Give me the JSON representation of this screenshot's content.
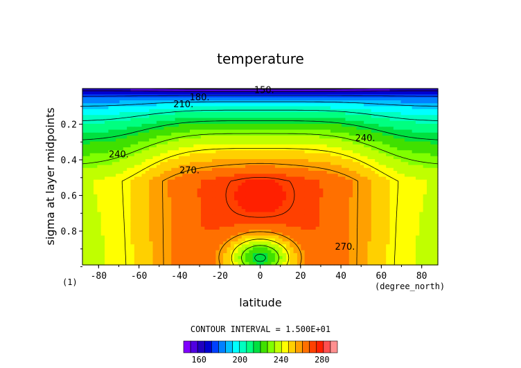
{
  "chart_data": {
    "type": "heatmap",
    "title": "temperature",
    "xlabel": "latitude",
    "ylabel": "sigma at layer midpoints",
    "x_units": "(degree_north)",
    "frame_label": "(1)",
    "xlim": [
      -88,
      88
    ],
    "ylim": [
      0.0,
      0.99
    ],
    "y_inverted": true,
    "xticks": [
      "-80",
      "-60",
      "-40",
      "-20",
      "0",
      "20",
      "40",
      "60",
      "80"
    ],
    "yticks": [
      "0.2",
      "0.4",
      "0.6",
      "0.8"
    ],
    "contour_interval_text": "CONTOUR INTERVAL = 1.500E+01",
    "colorbar": {
      "min": 145,
      "max": 295,
      "step": 7.5,
      "tick_values": [
        160,
        200,
        240,
        280
      ],
      "tick_labels": [
        "160",
        "200",
        "240",
        "280"
      ],
      "colors": [
        "#8000ff",
        "#5000e0",
        "#2000c0",
        "#0000d0",
        "#0040ff",
        "#0080ff",
        "#00c0ff",
        "#00ffff",
        "#00ffc0",
        "#00ff80",
        "#00e040",
        "#40e000",
        "#80ff00",
        "#c0ff00",
        "#ffff00",
        "#ffd000",
        "#ffa000",
        "#ff7000",
        "#ff4000",
        "#ff2000",
        "#ff5050",
        "#ff9090"
      ]
    },
    "contour_labels": [
      {
        "text": "150.",
        "x": 2,
        "y": 0.01
      },
      {
        "text": "180.",
        "x": -30,
        "y": 0.05
      },
      {
        "text": "210.",
        "x": -38,
        "y": 0.09
      },
      {
        "text": "240.",
        "x": 52,
        "y": 0.28
      },
      {
        "text": "240.",
        "x": -70,
        "y": 0.37
      },
      {
        "text": "270.",
        "x": -35,
        "y": 0.46
      },
      {
        "text": "270.",
        "x": 42,
        "y": 0.89
      }
    ],
    "contour_levels": [
      150,
      165,
      180,
      195,
      210,
      225,
      240,
      255,
      270,
      285
    ]
  }
}
